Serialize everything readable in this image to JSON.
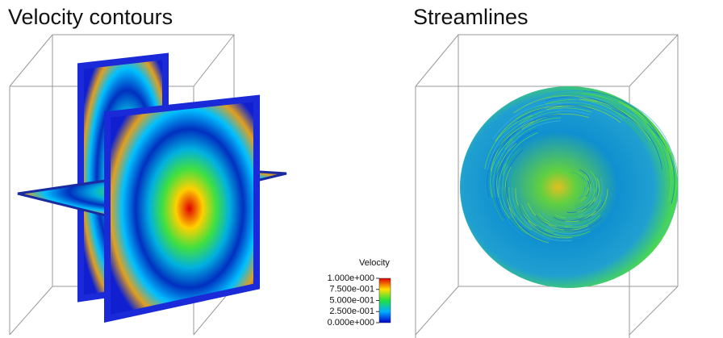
{
  "panels": [
    {
      "title": "Velocity contours"
    },
    {
      "title": "Streamlines"
    }
  ],
  "colorbar": {
    "title": "Velocity",
    "ticks": [
      {
        "value": 1,
        "label": "1.000e+000"
      },
      {
        "value": 0.75,
        "label": "7.500e-001"
      },
      {
        "value": 0.5,
        "label": "5.000e-001"
      },
      {
        "value": 0.25,
        "label": "2.500e-001"
      },
      {
        "value": 0,
        "label": "0.000e+000"
      }
    ]
  }
}
